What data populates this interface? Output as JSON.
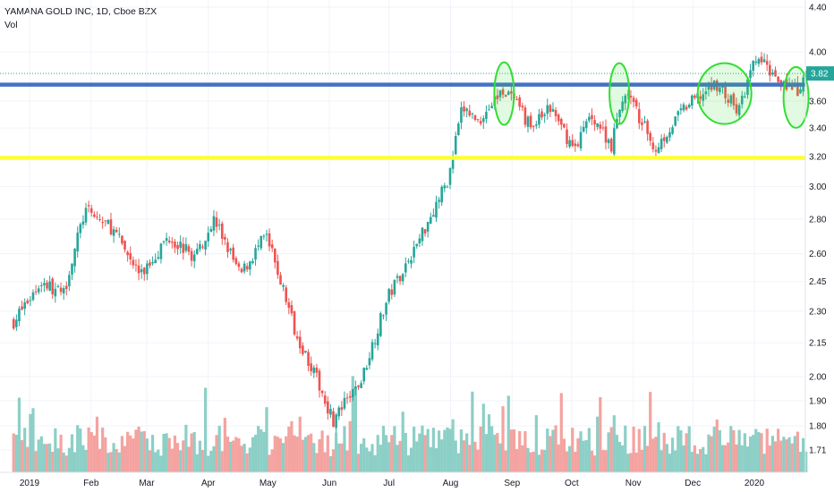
{
  "legend": {
    "symbol": "YAMANA GOLD INC, 1D, Cboe BZX",
    "volume": "Vol"
  },
  "colors": {
    "up": "#26a69a",
    "down": "#ef5350",
    "vol_up": "#8ccfc6",
    "vol_down": "#f4a3a0",
    "resistance": "#4472c4",
    "support": "#ffff33",
    "circles": "#33dd33",
    "last_price": "#26a69a"
  },
  "chart_data": {
    "type": "candlestick",
    "y_axis": {
      "scale": "log",
      "position": "right",
      "ticks": [
        "4.40",
        "4.00",
        "3.82",
        "3.60",
        "3.40",
        "3.20",
        "3.00",
        "2.80",
        "2.60",
        "2.45",
        "2.30",
        "2.15",
        "2.00",
        "1.90",
        "1.80",
        "1.71"
      ]
    },
    "x_axis": {
      "ticks": [
        "2019",
        "Feb",
        "Mar",
        "Apr",
        "May",
        "Jun",
        "Jul",
        "Aug",
        "Sep",
        "Oct",
        "Nov",
        "Dec",
        "2020"
      ]
    },
    "last_price": 3.82,
    "lines": [
      {
        "name": "resistance",
        "price": 3.73
      },
      {
        "name": "support",
        "price": 3.19
      }
    ],
    "highlights": [
      {
        "date": "2019-08-28",
        "price": 3.73
      },
      {
        "date": "2019-10-25",
        "price": 3.73
      },
      {
        "date": "2019-12-17",
        "price": 3.73
      },
      {
        "date": "2020-01-22",
        "price": 3.7
      }
    ],
    "series_anchors": [
      [
        "2018-12-24",
        2.25
      ],
      [
        "2019-01-07",
        2.45
      ],
      [
        "2019-01-18",
        2.38
      ],
      [
        "2019-01-29",
        2.85
      ],
      [
        "2019-02-11",
        2.75
      ],
      [
        "2019-02-26",
        2.48
      ],
      [
        "2019-03-12",
        2.7
      ],
      [
        "2019-03-25",
        2.58
      ],
      [
        "2019-04-04",
        2.8
      ],
      [
        "2019-04-17",
        2.48
      ],
      [
        "2019-04-30",
        2.7
      ],
      [
        "2019-05-15",
        2.2
      ],
      [
        "2019-06-03",
        1.82
      ],
      [
        "2019-06-17",
        1.98
      ],
      [
        "2019-07-01",
        2.38
      ],
      [
        "2019-07-15",
        2.65
      ],
      [
        "2019-07-31",
        3.05
      ],
      [
        "2019-08-07",
        3.55
      ],
      [
        "2019-08-15",
        3.45
      ],
      [
        "2019-08-28",
        3.7
      ],
      [
        "2019-09-11",
        3.4
      ],
      [
        "2019-09-20",
        3.55
      ],
      [
        "2019-10-02",
        3.25
      ],
      [
        "2019-10-11",
        3.5
      ],
      [
        "2019-10-21",
        3.28
      ],
      [
        "2019-10-28",
        3.68
      ],
      [
        "2019-11-12",
        3.25
      ],
      [
        "2019-11-27",
        3.55
      ],
      [
        "2019-12-13",
        3.74
      ],
      [
        "2019-12-24",
        3.52
      ],
      [
        "2020-01-02",
        3.95
      ],
      [
        "2020-01-13",
        3.78
      ],
      [
        "2020-01-23",
        3.66
      ],
      [
        "2020-01-28",
        3.82
      ]
    ]
  }
}
